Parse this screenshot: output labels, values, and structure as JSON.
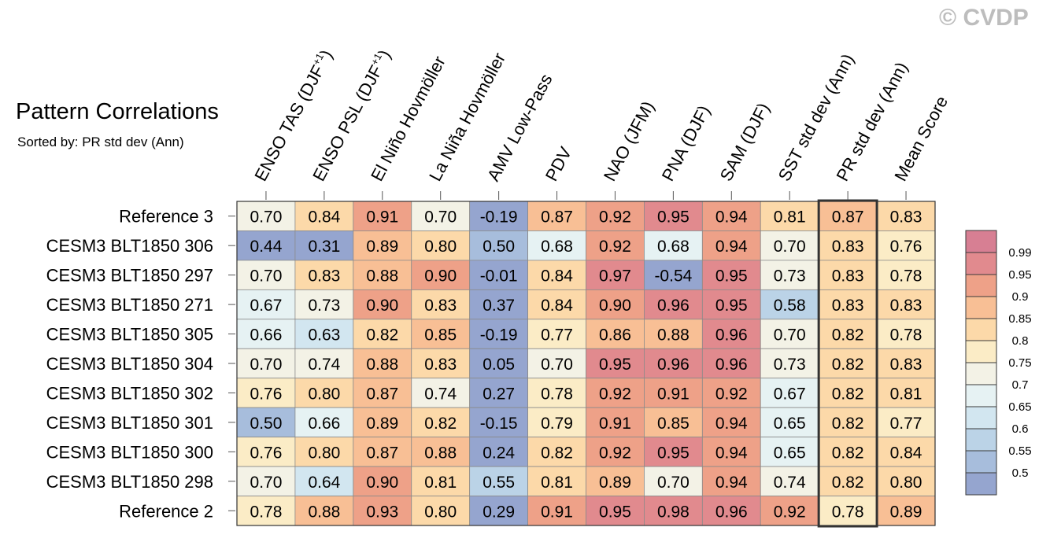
{
  "watermark": "© CVDP",
  "chart_data": {
    "type": "heatmap",
    "title": "Pattern Correlations",
    "subtitle": "Sorted by: PR std dev (Ann)",
    "columns": [
      "ENSO TAS (DJF+1)",
      "ENSO PSL (DJF+1)",
      "El Niño Hovmöller",
      "La Niña Hovmöller",
      "AMV Low-Pass",
      "PDV",
      "NAO (JFM)",
      "PNA (DJF)",
      "SAM (DJF)",
      "SST std dev (Ann)",
      "PR std dev (Ann)",
      "Mean Score"
    ],
    "column_labels": [
      {
        "main": "ENSO TAS (DJF",
        "sup": "+1",
        "tail": ")"
      },
      {
        "main": "ENSO PSL (DJF",
        "sup": "+1",
        "tail": ")"
      },
      {
        "main": "El Niño Hovmöller"
      },
      {
        "main": "La Niña Hovmöller"
      },
      {
        "main": "AMV Low-Pass"
      },
      {
        "main": "PDV"
      },
      {
        "main": "NAO (JFM)"
      },
      {
        "main": "PNA (DJF)"
      },
      {
        "main": "SAM (DJF)"
      },
      {
        "main": "SST std dev (Ann)"
      },
      {
        "main": "PR std dev (Ann)"
      },
      {
        "main": "Mean Score"
      }
    ],
    "highlight_column": "PR std dev (Ann)",
    "rows": [
      "Reference 3",
      "CESM3 BLT1850 306",
      "CESM3 BLT1850 297",
      "CESM3 BLT1850 271",
      "CESM3 BLT1850 305",
      "CESM3 BLT1850 304",
      "CESM3 BLT1850 302",
      "CESM3 BLT1850 301",
      "CESM3 BLT1850 300",
      "CESM3 BLT1850 298",
      "Reference 2"
    ],
    "values": [
      [
        "0.70",
        "0.84",
        "0.91",
        "0.70",
        "-0.19",
        "0.87",
        "0.92",
        "0.95",
        "0.94",
        "0.81",
        "0.87",
        "0.83"
      ],
      [
        "0.44",
        "0.31",
        "0.89",
        "0.80",
        "0.50",
        "0.68",
        "0.92",
        "0.68",
        "0.94",
        "0.70",
        "0.83",
        "0.76"
      ],
      [
        "0.70",
        "0.83",
        "0.88",
        "0.90",
        "-0.01",
        "0.84",
        "0.97",
        "-0.54",
        "0.95",
        "0.73",
        "0.83",
        "0.78"
      ],
      [
        "0.67",
        "0.73",
        "0.90",
        "0.83",
        "0.37",
        "0.84",
        "0.90",
        "0.96",
        "0.95",
        "0.58",
        "0.83",
        "0.83"
      ],
      [
        "0.66",
        "0.63",
        "0.82",
        "0.85",
        "-0.19",
        "0.77",
        "0.86",
        "0.88",
        "0.96",
        "0.70",
        "0.82",
        "0.78"
      ],
      [
        "0.70",
        "0.74",
        "0.88",
        "0.83",
        "0.05",
        "0.70",
        "0.95",
        "0.96",
        "0.96",
        "0.73",
        "0.82",
        "0.83"
      ],
      [
        "0.76",
        "0.80",
        "0.87",
        "0.74",
        "0.27",
        "0.78",
        "0.92",
        "0.91",
        "0.92",
        "0.67",
        "0.82",
        "0.81"
      ],
      [
        "0.50",
        "0.66",
        "0.89",
        "0.82",
        "-0.15",
        "0.79",
        "0.91",
        "0.85",
        "0.94",
        "0.65",
        "0.82",
        "0.77"
      ],
      [
        "0.76",
        "0.80",
        "0.87",
        "0.88",
        "0.24",
        "0.82",
        "0.92",
        "0.95",
        "0.94",
        "0.65",
        "0.82",
        "0.84"
      ],
      [
        "0.70",
        "0.64",
        "0.90",
        "0.81",
        "0.55",
        "0.81",
        "0.89",
        "0.70",
        "0.94",
        "0.74",
        "0.82",
        "0.80"
      ],
      [
        "0.78",
        "0.88",
        "0.93",
        "0.80",
        "0.29",
        "0.91",
        "0.95",
        "0.98",
        "0.96",
        "0.92",
        "0.78",
        "0.89"
      ]
    ],
    "colorbar": {
      "labels": [
        "0.99",
        "0.95",
        "0.9",
        "0.85",
        "0.8",
        "0.75",
        "0.7",
        "0.65",
        "0.6",
        "0.55",
        "0.5"
      ],
      "levels": [
        0.5,
        0.55,
        0.6,
        0.65,
        0.7,
        0.75,
        0.8,
        0.85,
        0.9,
        0.95,
        0.99
      ],
      "colors": [
        "#95a5cf",
        "#a7bddc",
        "#bbd3e7",
        "#d2e6f0",
        "#e6f2f3",
        "#f3f2e6",
        "#fbecc6",
        "#fcd9a9",
        "#f8bf95",
        "#eea188",
        "#e18a8e",
        "#d77f93"
      ]
    }
  }
}
